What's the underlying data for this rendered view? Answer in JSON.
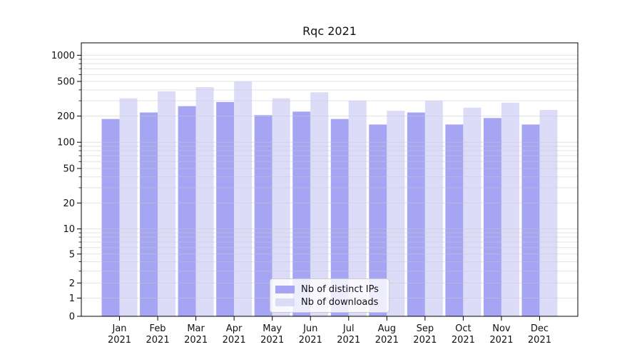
{
  "chart_data": {
    "type": "bar",
    "title": "Rqc 2021",
    "categories": [
      "Jan 2021",
      "Feb 2021",
      "Mar 2021",
      "Apr 2021",
      "May 2021",
      "Jun 2021",
      "Jul 2021",
      "Aug 2021",
      "Sep 2021",
      "Oct 2021",
      "Nov 2021",
      "Dec 2021"
    ],
    "series": [
      {
        "name": "Nb of distinct IPs",
        "color": "#a5a5f3",
        "values": [
          185,
          220,
          260,
          290,
          205,
          225,
          185,
          160,
          220,
          160,
          190,
          160
        ]
      },
      {
        "name": "Nb of downloads",
        "color": "#dcdcf8",
        "values": [
          320,
          385,
          430,
          500,
          320,
          375,
          300,
          230,
          300,
          250,
          285,
          235
        ]
      }
    ],
    "yscale": "asinh",
    "ylim": [
      0,
      1370
    ],
    "yticks": [
      0,
      1,
      2,
      5,
      10,
      20,
      50,
      100,
      200,
      500,
      1000
    ],
    "ytick_labels": [
      "0",
      "1",
      "2",
      "5",
      "10",
      "20",
      "50",
      "100",
      "200",
      "500",
      "1000"
    ],
    "minor_gridlines": [
      3,
      4,
      6,
      7,
      8,
      9,
      30,
      40,
      60,
      70,
      80,
      90,
      300,
      400,
      600,
      700,
      800,
      900
    ],
    "grid": true,
    "legend_position": "lower center",
    "xlabel": "",
    "ylabel": "",
    "colors": {
      "axis": "#000000",
      "gridline": "#e6e6e8",
      "background": "#ffffff",
      "text": "#111111"
    }
  }
}
